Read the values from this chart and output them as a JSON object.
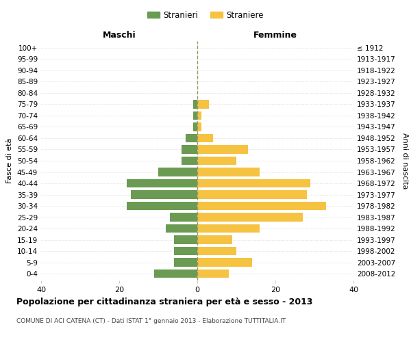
{
  "age_groups": [
    "0-4",
    "5-9",
    "10-14",
    "15-19",
    "20-24",
    "25-29",
    "30-34",
    "35-39",
    "40-44",
    "45-49",
    "50-54",
    "55-59",
    "60-64",
    "65-69",
    "70-74",
    "75-79",
    "80-84",
    "85-89",
    "90-94",
    "95-99",
    "100+"
  ],
  "birth_years": [
    "2008-2012",
    "2003-2007",
    "1998-2002",
    "1993-1997",
    "1988-1992",
    "1983-1987",
    "1978-1982",
    "1973-1977",
    "1968-1972",
    "1963-1967",
    "1958-1962",
    "1953-1957",
    "1948-1952",
    "1943-1947",
    "1938-1942",
    "1933-1937",
    "1928-1932",
    "1923-1927",
    "1918-1922",
    "1913-1917",
    "≤ 1912"
  ],
  "maschi": [
    11,
    6,
    6,
    6,
    8,
    7,
    18,
    17,
    18,
    10,
    4,
    4,
    3,
    1,
    1,
    1,
    0,
    0,
    0,
    0,
    0
  ],
  "femmine": [
    8,
    14,
    10,
    9,
    16,
    27,
    33,
    28,
    29,
    16,
    10,
    13,
    4,
    1,
    1,
    3,
    0,
    0,
    0,
    0,
    0
  ],
  "color_maschi": "#6b9a52",
  "color_femmine": "#f5c242",
  "title": "Popolazione per cittadinanza straniera per età e sesso - 2013",
  "subtitle": "COMUNE DI ACI CATENA (CT) - Dati ISTAT 1° gennaio 2013 - Elaborazione TUTTITALIA.IT",
  "xlabel_left": "Maschi",
  "xlabel_right": "Femmine",
  "ylabel_left": "Fasce di età",
  "ylabel_right": "Anni di nascita",
  "legend_maschi": "Stranieri",
  "legend_femmine": "Straniere",
  "xlim": 40,
  "background_color": "#ffffff",
  "grid_color": "#cccccc"
}
